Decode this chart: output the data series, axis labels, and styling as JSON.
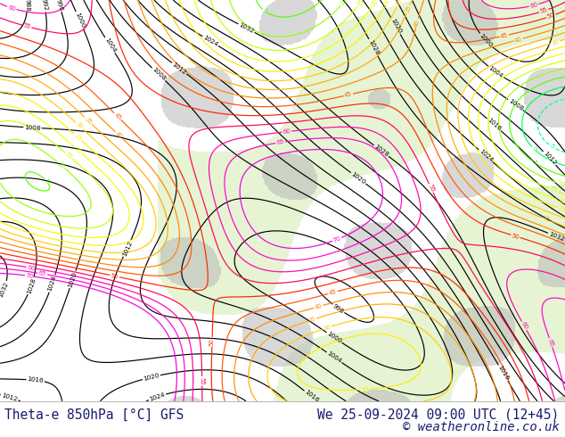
{
  "title_left": "Theta-e 850hPa [°C] GFS",
  "title_right": "We 25-09-2024 09:00 UTC (12+45)",
  "copyright": "© weatheronline.co.uk",
  "fig_width": 6.34,
  "fig_height": 4.9,
  "dpi": 100,
  "background_color": "#ffffff",
  "map_bg": "#f5f5f5",
  "land_color": "#c8e8a0",
  "terrain_color": "#b8b8b8",
  "title_color": "#1a1a6e",
  "bottom_bar_height": 0.082,
  "text_fontsize": 10.5,
  "copyright_fontsize": 10.0,
  "pressure_color": "#000000",
  "pressure_lw": 0.85,
  "theta_lw": 0.9,
  "theta_levels_colors": {
    "-55": "#0000cc",
    "-50": "#0000dd",
    "-45": "#0033ee",
    "-40": "#0055ff",
    "-35": "#0077ff",
    "-30": "#0099ff",
    "-25": "#00bbff",
    "-20": "#00ddff",
    "-15": "#00ffee",
    "-10": "#00ffcc",
    "-5": "#00ff99",
    "0": "#00ff55",
    "5": "#55ff00",
    "10": "#99ff00",
    "15": "#ccff00",
    "20": "#eeff00",
    "25": "#ffee00",
    "30": "#ffcc00",
    "35": "#ffaa00",
    "40": "#ff8800",
    "45": "#ff5500",
    "50": "#ff2200",
    "55": "#ff0055",
    "60": "#ff00aa",
    "65": "#ff00cc",
    "70": "#ee00dd"
  }
}
